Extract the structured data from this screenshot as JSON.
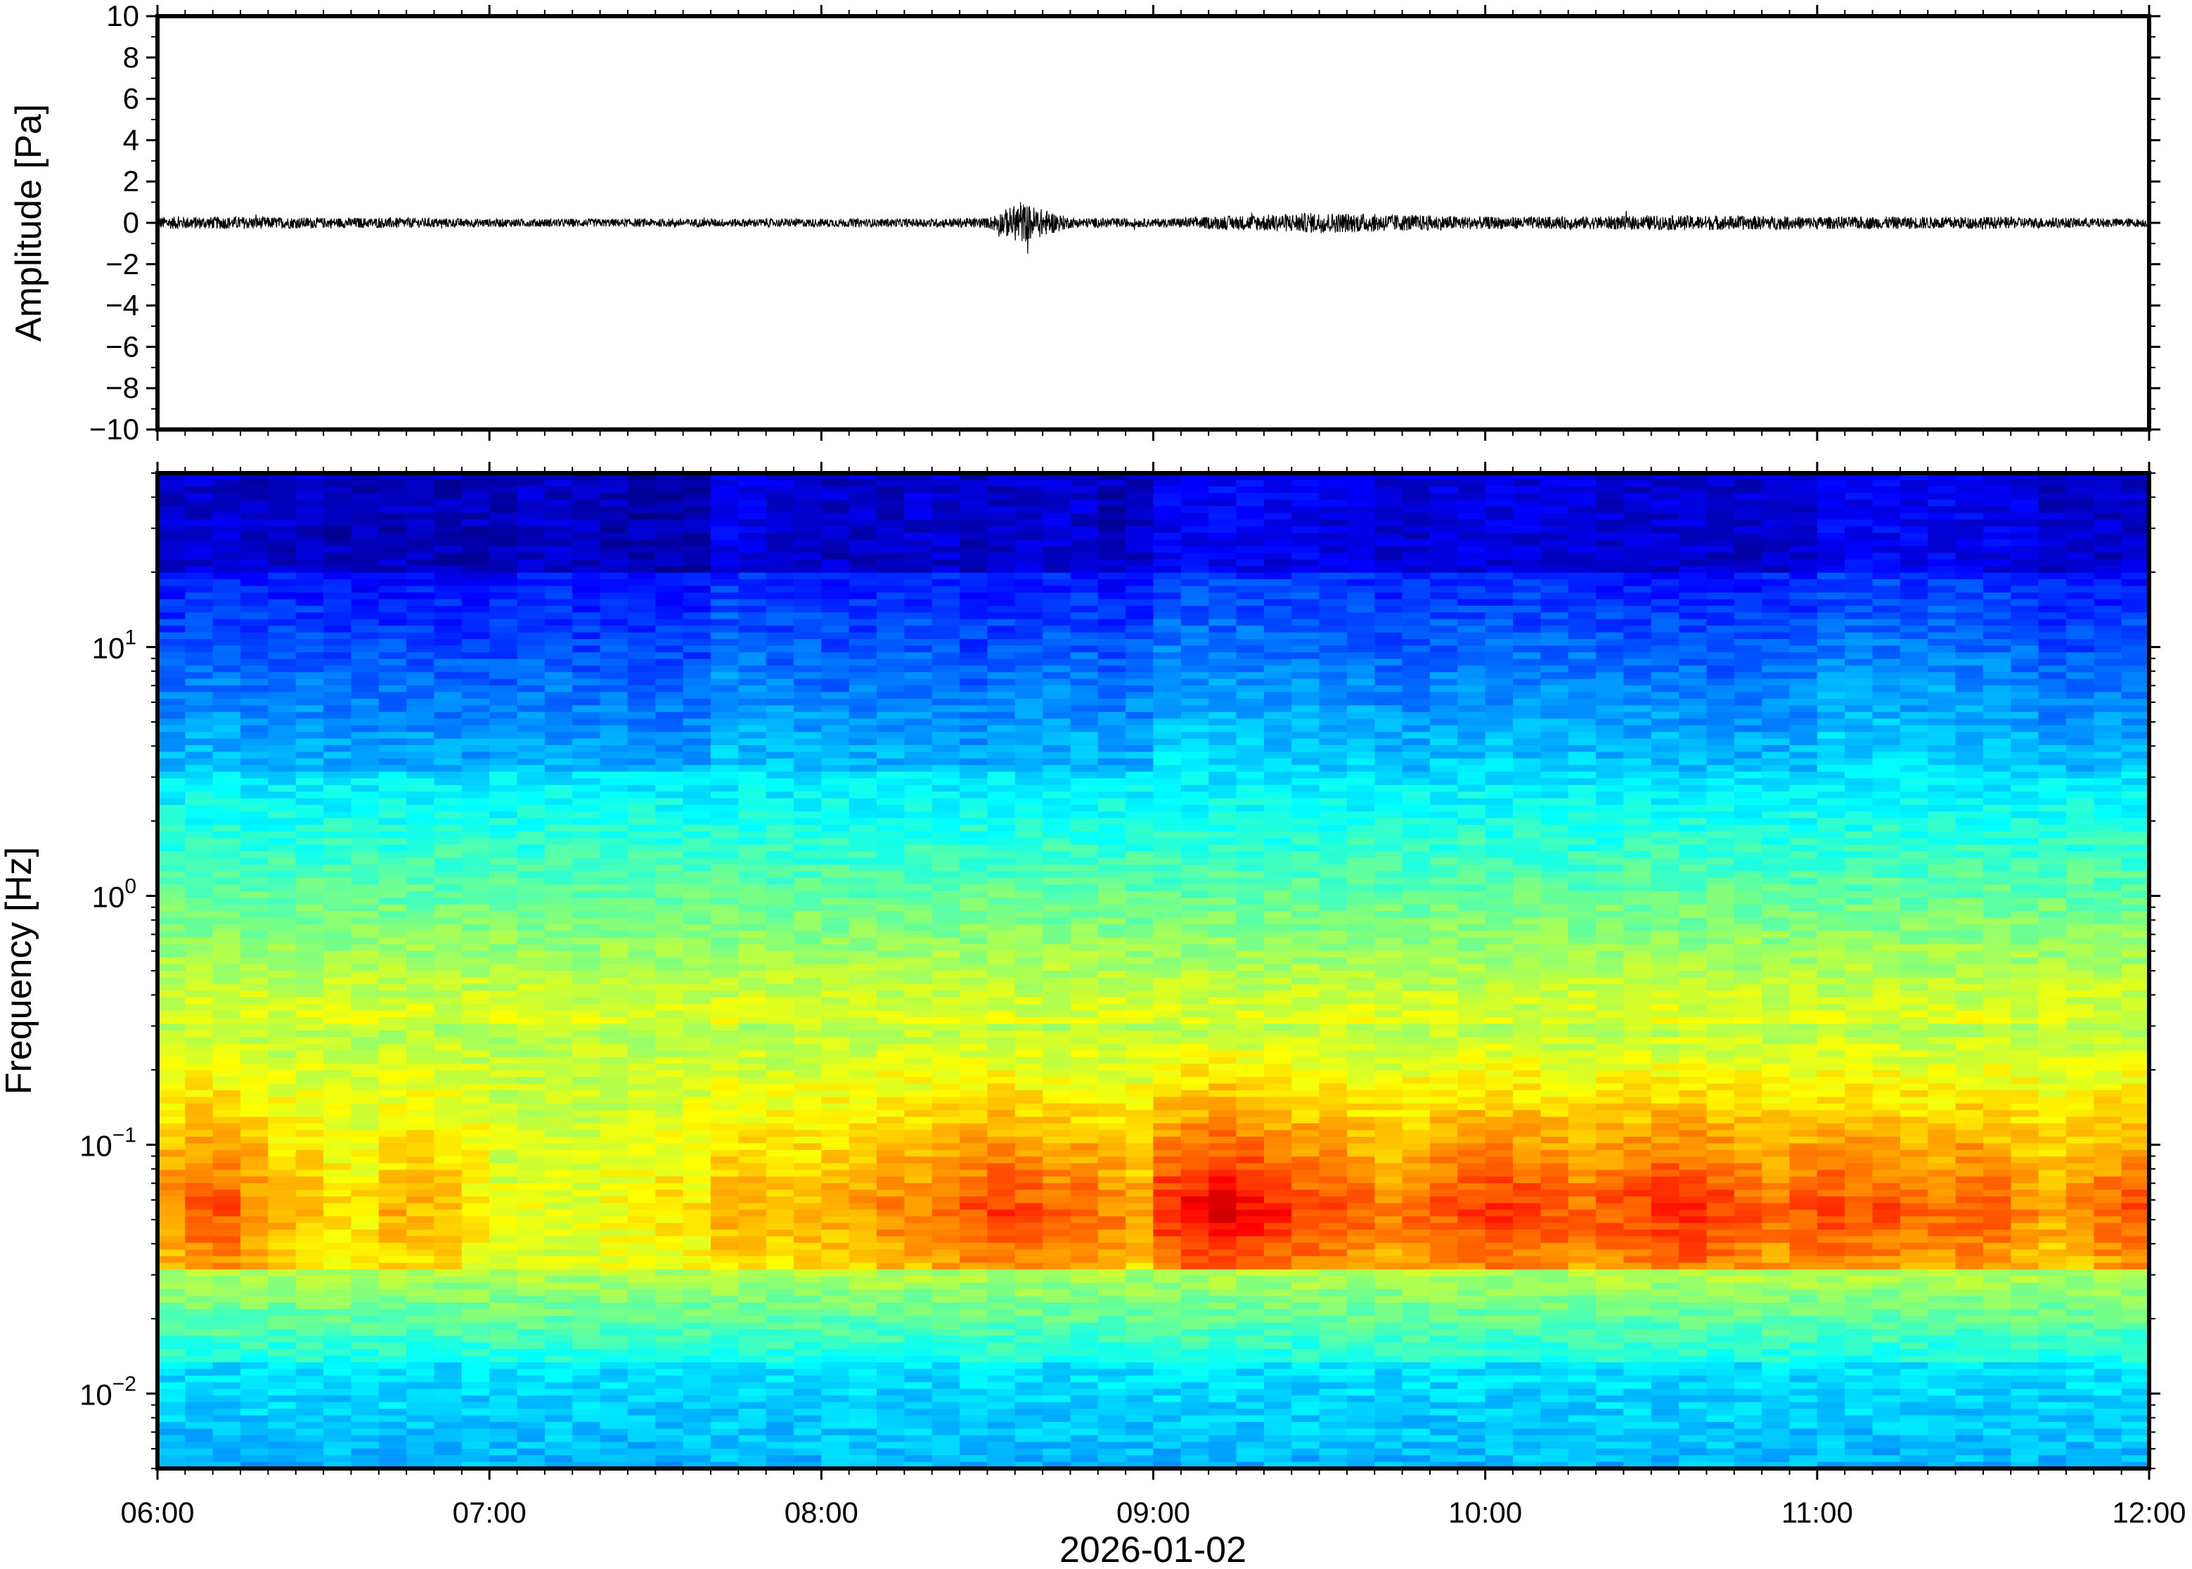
{
  "figure": {
    "date_label": "2026-01-02",
    "time_ticks": [
      "06:00",
      "07:00",
      "08:00",
      "09:00",
      "10:00",
      "11:00",
      "12:00"
    ]
  },
  "chart_data": [
    {
      "type": "line",
      "ylabel": "Amplitude [Pa]",
      "ylim": [
        -10,
        10
      ],
      "y_ticks": [
        "10",
        "8",
        "6",
        "4",
        "2",
        "0",
        "−2",
        "−4",
        "−6",
        "−8",
        "−10"
      ],
      "x_range": [
        "06:00",
        "12:00"
      ],
      "xlabel": "2026-01-02",
      "trace_color": "#000000",
      "series": [
        {
          "x_hours": [
            6.0,
            6.25,
            6.5,
            6.75,
            7.0,
            7.25,
            7.5,
            7.75,
            8.0,
            8.25,
            8.5,
            8.6,
            8.75,
            9.0,
            9.25,
            9.5,
            9.75,
            10.0,
            10.25,
            10.5,
            10.75,
            11.0,
            11.25,
            11.5,
            11.75,
            12.0
          ],
          "envelope_pa": [
            0.3,
            0.3,
            0.25,
            0.25,
            0.2,
            0.2,
            0.2,
            0.2,
            0.2,
            0.2,
            0.25,
            1.0,
            0.25,
            0.2,
            0.35,
            0.5,
            0.4,
            0.3,
            0.3,
            0.35,
            0.35,
            0.3,
            0.3,
            0.3,
            0.25,
            0.2
          ]
        }
      ]
    },
    {
      "type": "heatmap",
      "ylabel": "Frequency [Hz]",
      "y_scale": "log",
      "ylim": [
        0.005,
        50
      ],
      "y_ticks": [
        {
          "base": "10",
          "exp": "1",
          "value": 10
        },
        {
          "base": "10",
          "exp": "0",
          "value": 1
        },
        {
          "base": "10",
          "exp": "−1",
          "value": 0.1
        },
        {
          "base": "10",
          "exp": "−2",
          "value": 0.01
        }
      ],
      "x_range": [
        "06:00",
        "12:00"
      ],
      "xlabel": "2026-01-02",
      "colormap": "jet",
      "column_minutes": 5,
      "high_freq_darkness": [
        0.9,
        0.85,
        0.85,
        0.9,
        0.9,
        0.9,
        0.95,
        0.95,
        0.95,
        0.95,
        0.95,
        0.95,
        0.95,
        0.9,
        0.9,
        0.95,
        0.95,
        1.0,
        1.0,
        0.98,
        0.75,
        0.8,
        0.85,
        0.85,
        0.9,
        0.9,
        0.9,
        0.85,
        0.85,
        0.95,
        0.9,
        0.85,
        0.85,
        0.85,
        0.95,
        0.9,
        0.7,
        0.7,
        0.7,
        0.72,
        0.75,
        0.75,
        0.8,
        0.8,
        0.85,
        0.85,
        0.8,
        0.8,
        0.8,
        0.8,
        0.8,
        0.8,
        0.85,
        0.85,
        0.85,
        0.85,
        0.9,
        0.9,
        0.85,
        0.85,
        0.7,
        0.7,
        0.7,
        0.72,
        0.72,
        0.75,
        0.75,
        0.8,
        0.9,
        0.92,
        0.9,
        0.88
      ],
      "low_freq_peak": [
        0.75,
        0.8,
        0.8,
        0.75,
        0.7,
        0.7,
        0.65,
        0.65,
        0.7,
        0.7,
        0.7,
        0.65,
        0.6,
        0.6,
        0.6,
        0.6,
        0.62,
        0.62,
        0.65,
        0.65,
        0.7,
        0.7,
        0.7,
        0.7,
        0.72,
        0.72,
        0.75,
        0.75,
        0.78,
        0.8,
        0.82,
        0.8,
        0.78,
        0.78,
        0.75,
        0.72,
        0.85,
        0.88,
        0.9,
        0.88,
        0.85,
        0.82,
        0.8,
        0.78,
        0.75,
        0.78,
        0.8,
        0.82,
        0.84,
        0.82,
        0.8,
        0.78,
        0.8,
        0.82,
        0.84,
        0.85,
        0.82,
        0.8,
        0.78,
        0.8,
        0.82,
        0.8,
        0.8,
        0.78,
        0.78,
        0.8,
        0.78,
        0.75,
        0.72,
        0.75,
        0.78,
        0.8
      ]
    }
  ]
}
